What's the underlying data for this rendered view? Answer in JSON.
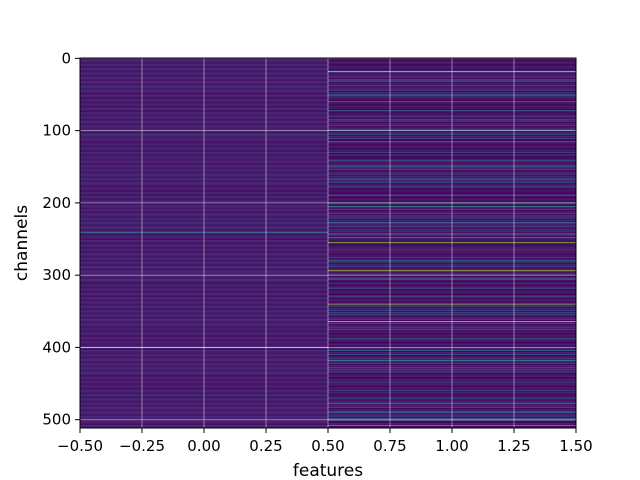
{
  "chart_data": {
    "type": "heatmap",
    "title": "",
    "xlabel": "features",
    "ylabel": "channels",
    "columns": [
      0,
      1
    ],
    "rows": 512,
    "xlim": [
      -0.5,
      1.5
    ],
    "ylim": [
      511.5,
      -0.5
    ],
    "y_inverted": true,
    "x_ticks": [
      -0.5,
      -0.25,
      0.0,
      0.25,
      0.5,
      0.75,
      1.0,
      1.25,
      1.5
    ],
    "x_tick_labels": [
      "−0.50",
      "−0.25",
      "0.00",
      "0.25",
      "0.50",
      "0.75",
      "1.00",
      "1.25",
      "1.50"
    ],
    "y_ticks": [
      0,
      100,
      200,
      300,
      400,
      500
    ],
    "y_tick_labels": [
      "0",
      "100",
      "200",
      "300",
      "400",
      "500"
    ],
    "grid": true,
    "colormap": "viridis",
    "value_range": [
      0,
      1
    ],
    "column_0_base_value": 0.08,
    "column_1_base_value": 0.05,
    "column_0_bright_rows": {
      "241": 0.45,
      "400": 0.8
    },
    "column_1_bright_rows": {
      "18": 0.92,
      "30": 0.4,
      "52": 0.55,
      "60": 0.5,
      "72": 0.3,
      "85": 0.25,
      "100": 0.3,
      "115": 0.35,
      "130": 0.3,
      "142": 0.45,
      "150": 0.4,
      "168": 0.3,
      "178": 0.35,
      "190": 0.3,
      "200": 0.6,
      "205": 0.5,
      "218": 0.3,
      "228": 0.35,
      "243": 0.5,
      "248": 0.55,
      "255": 0.8,
      "265": 0.3,
      "280": 0.35,
      "294": 0.9,
      "305": 0.3,
      "318": 0.35,
      "330": 0.3,
      "340": 0.85,
      "352": 0.3,
      "364": 0.9,
      "375": 0.3,
      "388": 0.35,
      "404": 0.45,
      "418": 0.5,
      "430": 0.3,
      "448": 0.35,
      "460": 0.3,
      "478": 0.4,
      "490": 0.35,
      "498": 0.3,
      "508": 0.65
    },
    "colors": {
      "viridis_stops": [
        "#440154",
        "#482878",
        "#3e4989",
        "#31688e",
        "#26828e",
        "#1f9e89",
        "#35b779",
        "#6ece58",
        "#b5de2b",
        "#fde725"
      ],
      "grid": "#ffffff",
      "axis": "#000000"
    }
  }
}
